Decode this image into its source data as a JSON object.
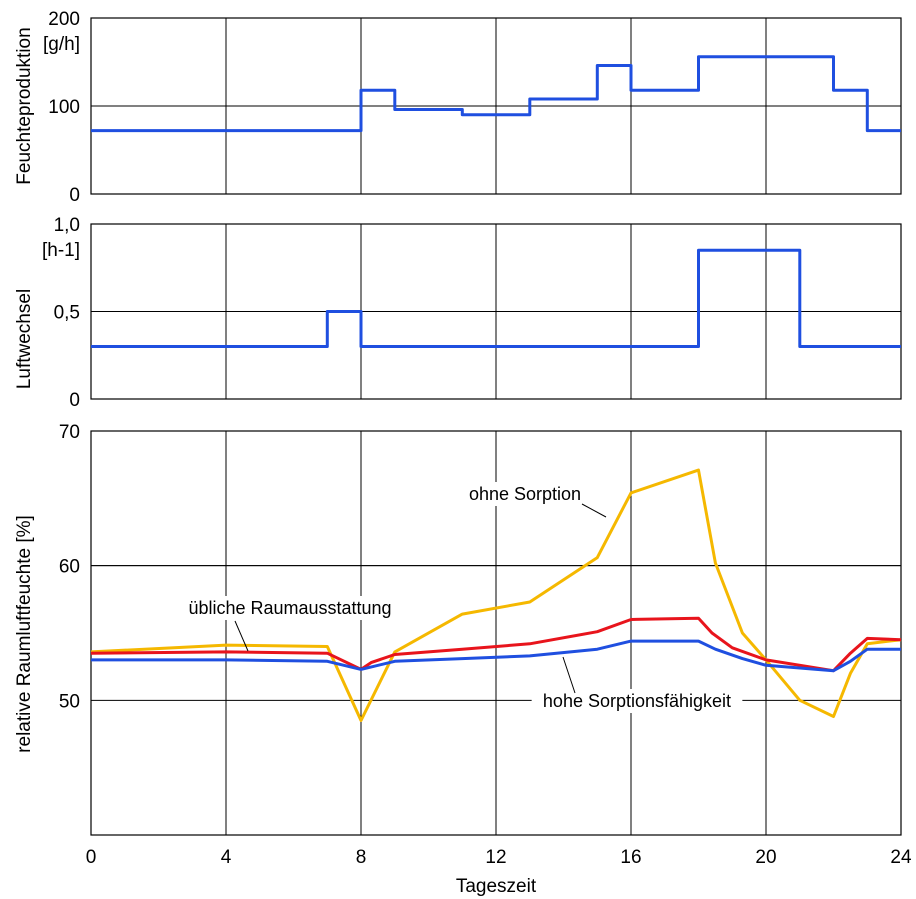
{
  "chart_data": [
    {
      "type": "line",
      "ylabel": "Feuchteproduktion",
      "unit": "[g/h]",
      "ylim": [
        0,
        200
      ],
      "yticks": [
        "0",
        "100",
        "200"
      ],
      "xlim": [
        0,
        24
      ],
      "grid": true,
      "series": [
        {
          "color": "#1f4fe0",
          "step": true,
          "x": [
            0,
            8,
            8,
            9,
            9,
            11,
            11,
            13,
            13,
            15,
            15,
            16,
            16,
            18,
            18,
            22,
            22,
            23,
            23,
            24
          ],
          "y": [
            72,
            72,
            118,
            118,
            96,
            96,
            90,
            90,
            108,
            108,
            146,
            146,
            118,
            118,
            156,
            156,
            118,
            118,
            72,
            72
          ]
        }
      ]
    },
    {
      "type": "line",
      "ylabel": "Luftwechsel",
      "unit": "[h-1]",
      "ylim": [
        0,
        1.0
      ],
      "yticks": [
        "0",
        "0,5",
        "1,0"
      ],
      "xlim": [
        0,
        24
      ],
      "grid": true,
      "series": [
        {
          "color": "#1f4fe0",
          "step": true,
          "x": [
            0,
            7,
            7,
            8,
            8,
            18,
            18,
            21,
            21,
            24
          ],
          "y": [
            0.3,
            0.3,
            0.5,
            0.5,
            0.3,
            0.3,
            0.85,
            0.85,
            0.3,
            0.3
          ]
        }
      ]
    },
    {
      "type": "line",
      "ylabel": "relative Raumluftfeuchte [%]",
      "xlabel": "Tageszeit",
      "ylim": [
        40,
        70
      ],
      "yticks": [
        "50",
        "60",
        "70"
      ],
      "xlim": [
        0,
        24
      ],
      "xticks": [
        "0",
        "4",
        "8",
        "12",
        "16",
        "20",
        "24"
      ],
      "grid": true,
      "annotations": [
        "ohne Sorption",
        "übliche Raumausstattung",
        "hohe Sorptionsfähigkeit"
      ],
      "series": [
        {
          "name": "ohne Sorption",
          "color": "#f5b800",
          "x": [
            0,
            4,
            7,
            8,
            9,
            11,
            13,
            15,
            16,
            18,
            18.5,
            19.3,
            20,
            21,
            22,
            22.5,
            23,
            24
          ],
          "y": [
            53.6,
            54.1,
            54.0,
            48.5,
            53.6,
            56.4,
            57.3,
            60.6,
            65.4,
            67.1,
            60.2,
            55.0,
            53.0,
            50.0,
            48.8,
            52.0,
            54.2,
            54.5
          ]
        },
        {
          "name": "übliche Raumausstattung",
          "color": "#e8141c",
          "x": [
            0,
            4,
            7,
            8,
            8.3,
            9,
            11,
            13,
            15,
            16,
            18,
            18.4,
            19,
            20,
            22,
            22.5,
            23,
            24
          ],
          "y": [
            53.5,
            53.6,
            53.5,
            52.3,
            52.8,
            53.4,
            53.8,
            54.2,
            55.1,
            56.0,
            56.1,
            55.0,
            53.9,
            53.0,
            52.2,
            53.5,
            54.6,
            54.5
          ]
        },
        {
          "name": "hohe Sorptionsfähigkeit",
          "color": "#1f4fe0",
          "x": [
            0,
            4,
            7,
            8,
            9,
            11,
            13,
            15,
            16,
            18,
            18.5,
            19.3,
            20,
            22,
            22.5,
            23,
            24
          ],
          "y": [
            53.0,
            53.0,
            52.9,
            52.3,
            52.9,
            53.1,
            53.3,
            53.8,
            54.4,
            54.4,
            53.8,
            53.1,
            52.6,
            52.2,
            52.9,
            53.8,
            53.8
          ]
        }
      ]
    }
  ]
}
